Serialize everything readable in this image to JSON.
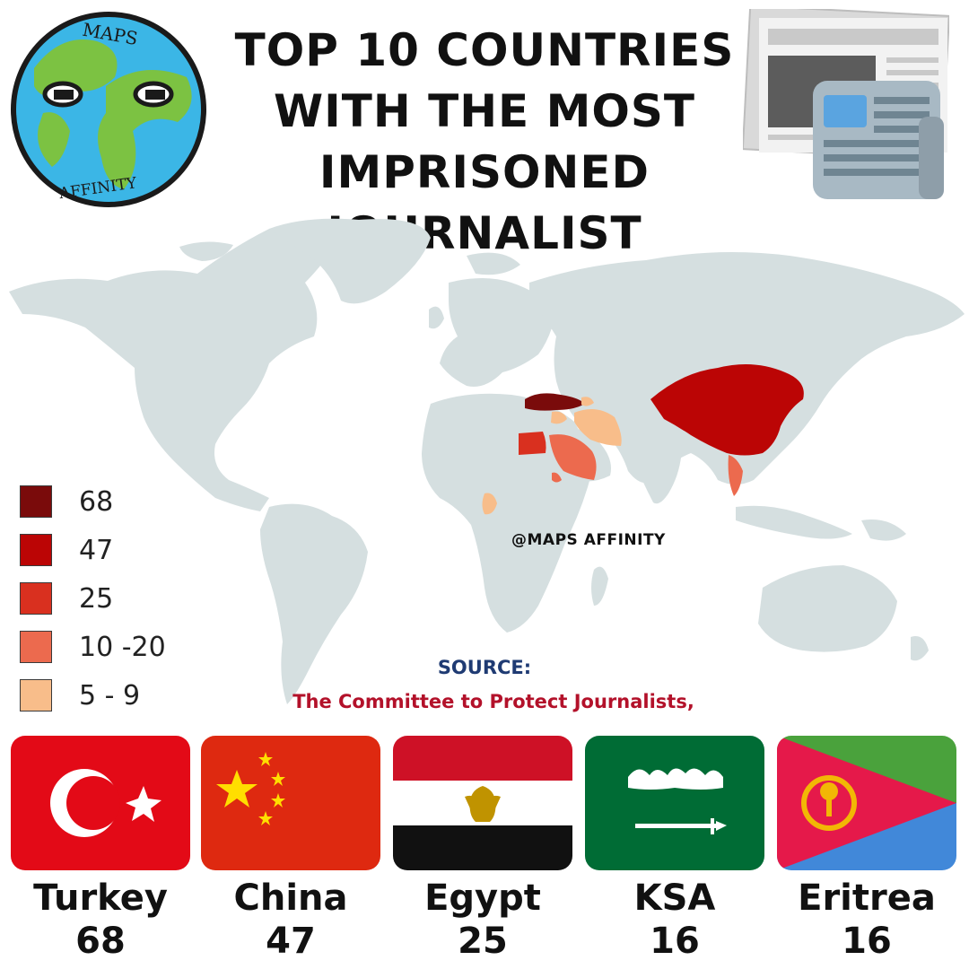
{
  "title": {
    "line1": "TOP 10 COUNTRIES",
    "line2": "WITH THE MOST",
    "line3": "IMPRISONED JOURNALIST"
  },
  "logo": {
    "top_text": "MAPS",
    "bottom_text": "AFFINITY"
  },
  "watermark": "@MAPS AFFINITY",
  "legend": [
    {
      "label": "68",
      "color": "#7a0b0b"
    },
    {
      "label": "47",
      "color": "#bb0505"
    },
    {
      "label": "25",
      "color": "#d9301f"
    },
    {
      "label": "10 -20",
      "color": "#ec6a4e"
    },
    {
      "label": "5 - 9",
      "color": "#f8bd8a"
    }
  ],
  "map": {
    "land_color": "#d5dfe0",
    "country_colors": {
      "Turkey": "#7a0b0b",
      "China": "#bb0505",
      "Egypt": "#d9301f",
      "Saudi Arabia": "#ec6a4e",
      "Eritrea": "#ec6a4e",
      "Vietnam": "#ec6a4e",
      "Iran": "#f8bd8a",
      "Syria": "#f8bd8a",
      "Azerbaijan": "#f8bd8a",
      "Cameroon": "#f8bd8a"
    }
  },
  "source": {
    "label": "SOURCE:",
    "text": "The Committee to Protect Journalists,"
  },
  "flags": [
    {
      "name": "Turkey",
      "value": "68"
    },
    {
      "name": "China",
      "value": "47"
    },
    {
      "name": "Egypt",
      "value": "25"
    },
    {
      "name": "KSA",
      "value": "16"
    },
    {
      "name": "Eritrea",
      "value": "16"
    }
  ]
}
